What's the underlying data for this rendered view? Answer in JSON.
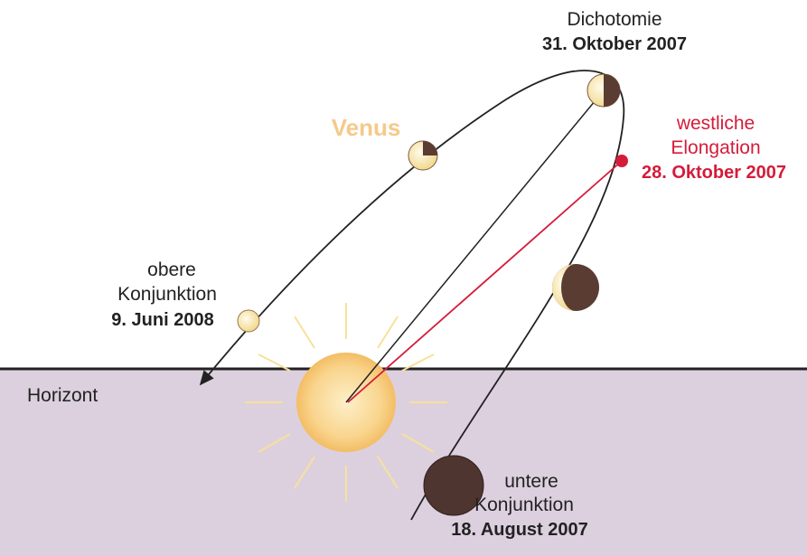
{
  "planet": "Venus",
  "horizon": "Horizont",
  "dichotomy": {
    "title": "Dichotomie",
    "date": "31. Oktober 2007"
  },
  "western_elongation": {
    "line1": "westliche",
    "line2": "Elongation",
    "date": "28. Oktober 2007"
  },
  "superior_conjunction": {
    "line1": "obere",
    "line2": "Konjunktion",
    "date": "9. Juni 2008"
  },
  "inferior_conjunction": {
    "line1": "untere",
    "line2": "Konjunktion",
    "date": "18. August 2007"
  }
}
